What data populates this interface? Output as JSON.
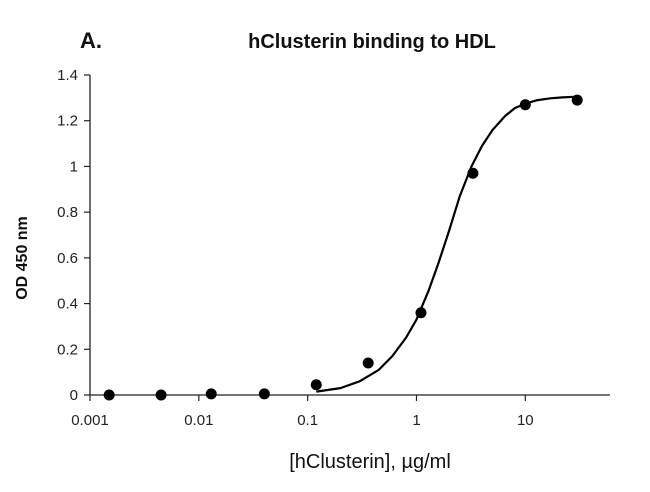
{
  "panel_label": "A.",
  "chart_data": {
    "type": "scatter",
    "title": "hClusterin binding to HDL",
    "xlabel": "[hClusterin], µg/ml",
    "ylabel": "OD 450 nm",
    "x_scale": "log",
    "xlim": [
      0.001,
      60
    ],
    "ylim": [
      0,
      1.4
    ],
    "x_ticks": [
      0.001,
      0.01,
      0.1,
      1,
      10
    ],
    "x_tick_labels": [
      "0.001",
      "0.01",
      "0.1",
      "1",
      "10"
    ],
    "y_ticks": [
      0,
      0.2,
      0.4,
      0.6,
      0.8,
      1,
      1.2,
      1.4
    ],
    "y_tick_labels": [
      "0",
      "0.2",
      "0.4",
      "0.6",
      "0.8",
      "1",
      "1.2",
      "1.4"
    ],
    "grid": false,
    "legend": "none",
    "series": [
      {
        "kind": "points",
        "color": "#000000",
        "x": [
          0.0015,
          0.0045,
          0.013,
          0.04,
          0.12,
          0.36,
          1.1,
          3.3,
          10,
          30
        ],
        "y": [
          0.0,
          0.0,
          0.005,
          0.005,
          0.045,
          0.14,
          0.36,
          0.97,
          1.27,
          1.29
        ]
      },
      {
        "kind": "fit-curve",
        "color": "#000000",
        "x": [
          0.12,
          0.2,
          0.3,
          0.45,
          0.6,
          0.8,
          1.0,
          1.3,
          1.6,
          2.0,
          2.5,
          3.2,
          4.0,
          5.0,
          6.5,
          8.0,
          10,
          13,
          17,
          22,
          30
        ],
        "y": [
          0.015,
          0.03,
          0.06,
          0.11,
          0.17,
          0.25,
          0.33,
          0.46,
          0.58,
          0.72,
          0.87,
          1.0,
          1.09,
          1.16,
          1.22,
          1.255,
          1.275,
          1.29,
          1.298,
          1.302,
          1.305
        ]
      }
    ]
  }
}
